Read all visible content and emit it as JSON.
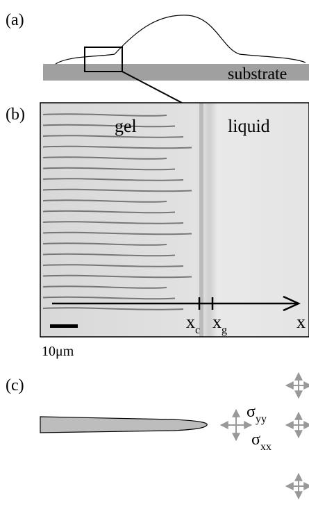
{
  "panel_a": {
    "label": "(a)",
    "substrate": "substrate"
  },
  "panel_b": {
    "label": "(b)",
    "gel": "gel",
    "liquid": "liquid",
    "x_c": {
      "main": "x",
      "sub": "c"
    },
    "x_g": {
      "main": "x",
      "sub": "g"
    },
    "x_axis": "x",
    "scale_bar": "10μm"
  },
  "panel_c": {
    "label": "(c)",
    "sigma_yy": {
      "main": "σ",
      "sub": "yy"
    },
    "sigma_xx": {
      "main": "σ",
      "sub": "xx"
    }
  }
}
